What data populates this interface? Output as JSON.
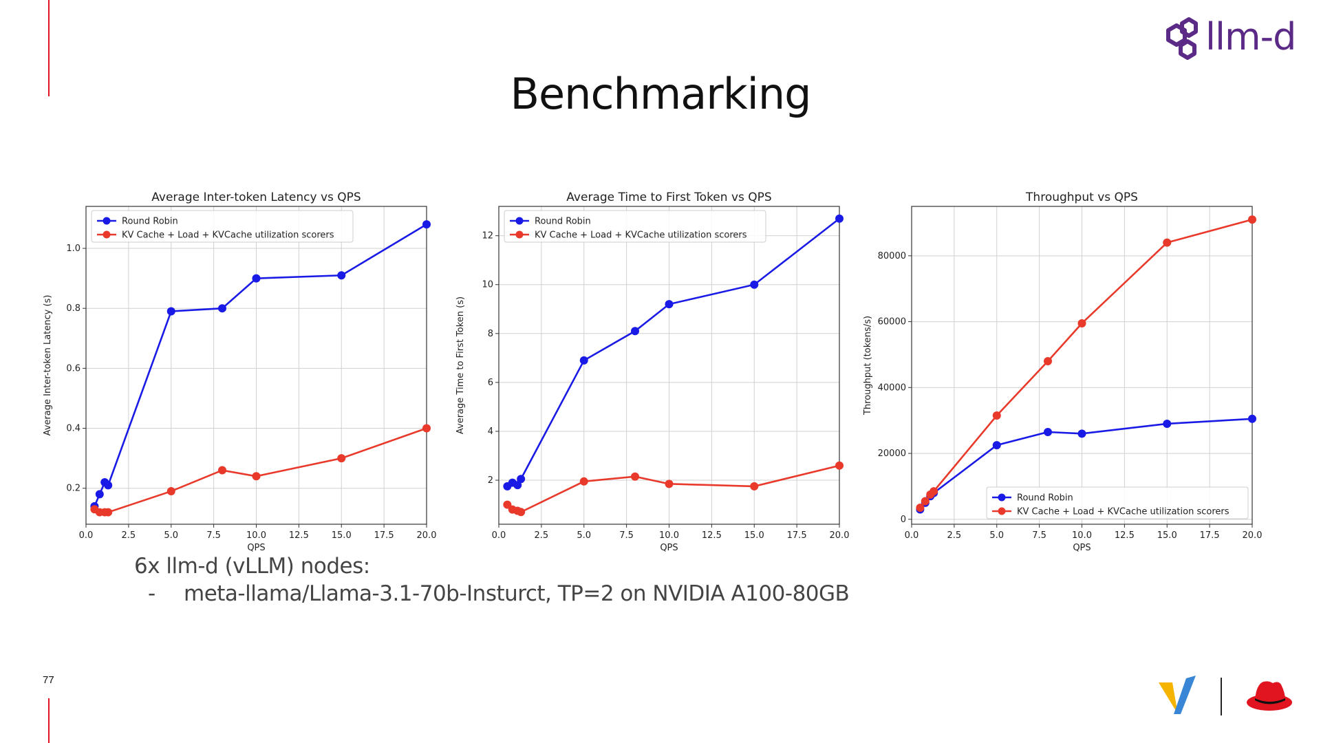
{
  "slide": {
    "title": "Benchmarking",
    "page_number": "77",
    "logo_text": "llm-d",
    "bullet_heading": "6x llm-d (vLLM) nodes:",
    "bullet_dash": "-",
    "bullet_item": "meta-llama/Llama-3.1-70b-Insturct, TP=2 on NVIDIA A100-80GB"
  },
  "colors": {
    "accent": "#e0151f",
    "round_robin": "#1a1ae6",
    "kv_cache": "#e8392b",
    "logo_purple": "#5b2a86"
  },
  "icons": [
    "llm-d-logo-icon",
    "vllm-logo-icon",
    "redhat-logo-icon"
  ],
  "chart_data": [
    {
      "type": "line",
      "title": "Average Inter-token Latency vs QPS",
      "xlabel": "QPS",
      "ylabel": "Average Inter-token Latency (s)",
      "xlim": [
        0,
        20
      ],
      "ylim": [
        0.08,
        1.14
      ],
      "xticks": [
        "0.0",
        "2.5",
        "5.0",
        "7.5",
        "10.0",
        "12.5",
        "15.0",
        "17.5",
        "20.0"
      ],
      "xtick_values": [
        0,
        2.5,
        5,
        7.5,
        10,
        12.5,
        15,
        17.5,
        20
      ],
      "yticks": [
        "0.2",
        "0.4",
        "0.6",
        "0.8",
        "1.0"
      ],
      "ytick_values": [
        0.2,
        0.4,
        0.6,
        0.8,
        1.0
      ],
      "grid": true,
      "legend_position": "top-left",
      "series": [
        {
          "name": "Round Robin",
          "color": "#1a1ae6",
          "x": [
            0.5,
            0.8,
            1.1,
            1.3,
            5,
            8,
            10,
            15,
            20
          ],
          "y": [
            0.14,
            0.18,
            0.22,
            0.21,
            0.79,
            0.8,
            0.9,
            0.91,
            1.08
          ]
        },
        {
          "name": "KV Cache + Load + KVCache utilization scorers",
          "color": "#e8392b",
          "x": [
            0.5,
            0.8,
            1.1,
            1.3,
            5,
            8,
            10,
            15,
            20
          ],
          "y": [
            0.13,
            0.12,
            0.12,
            0.12,
            0.19,
            0.26,
            0.24,
            0.3,
            0.4
          ]
        }
      ]
    },
    {
      "type": "line",
      "title": "Average Time to First Token vs QPS",
      "xlabel": "QPS",
      "ylabel": "Average Time to First Token (s)",
      "xlim": [
        0,
        20
      ],
      "ylim": [
        0.2,
        13.2
      ],
      "xticks": [
        "0.0",
        "2.5",
        "5.0",
        "7.5",
        "10.0",
        "12.5",
        "15.0",
        "17.5",
        "20.0"
      ],
      "xtick_values": [
        0,
        2.5,
        5,
        7.5,
        10,
        12.5,
        15,
        17.5,
        20
      ],
      "yticks": [
        "2",
        "4",
        "6",
        "8",
        "10",
        "12"
      ],
      "ytick_values": [
        2,
        4,
        6,
        8,
        10,
        12
      ],
      "grid": true,
      "legend_position": "top-left",
      "series": [
        {
          "name": "Round Robin",
          "color": "#1a1ae6",
          "x": [
            0.5,
            0.8,
            1.1,
            1.3,
            5,
            8,
            10,
            15,
            20
          ],
          "y": [
            1.75,
            1.9,
            1.8,
            2.05,
            6.9,
            8.1,
            9.2,
            10.0,
            12.7
          ]
        },
        {
          "name": "KV Cache + Load + KVCache utilization scorers",
          "color": "#e8392b",
          "x": [
            0.5,
            0.8,
            1.1,
            1.3,
            5,
            8,
            10,
            15,
            20
          ],
          "y": [
            1.0,
            0.8,
            0.75,
            0.7,
            1.95,
            2.15,
            1.85,
            1.75,
            2.6
          ]
        }
      ]
    },
    {
      "type": "line",
      "title": "Throughput vs QPS",
      "xlabel": "QPS",
      "ylabel": "Throughput (tokens/s)",
      "xlim": [
        0,
        20
      ],
      "ylim": [
        -1500,
        95000
      ],
      "xticks": [
        "0.0",
        "2.5",
        "5.0",
        "7.5",
        "10.0",
        "12.5",
        "15.0",
        "17.5",
        "20.0"
      ],
      "xtick_values": [
        0,
        2.5,
        5,
        7.5,
        10,
        12.5,
        15,
        17.5,
        20
      ],
      "yticks": [
        "0",
        "20000",
        "40000",
        "60000",
        "80000"
      ],
      "ytick_values": [
        0,
        20000,
        40000,
        60000,
        80000
      ],
      "grid": true,
      "legend_position": "bottom-right",
      "series": [
        {
          "name": "Round Robin",
          "color": "#1a1ae6",
          "x": [
            0.5,
            0.8,
            1.1,
            1.3,
            5,
            8,
            10,
            15,
            20
          ],
          "y": [
            3000,
            5000,
            7000,
            8000,
            22500,
            26500,
            26000,
            29000,
            30500
          ]
        },
        {
          "name": "KV Cache + Load + KVCache utilization scorers",
          "color": "#e8392b",
          "x": [
            0.5,
            0.8,
            1.1,
            1.3,
            5,
            8,
            10,
            15,
            20
          ],
          "y": [
            3500,
            5500,
            7500,
            8500,
            31500,
            48000,
            59500,
            84000,
            91000
          ]
        }
      ]
    }
  ]
}
